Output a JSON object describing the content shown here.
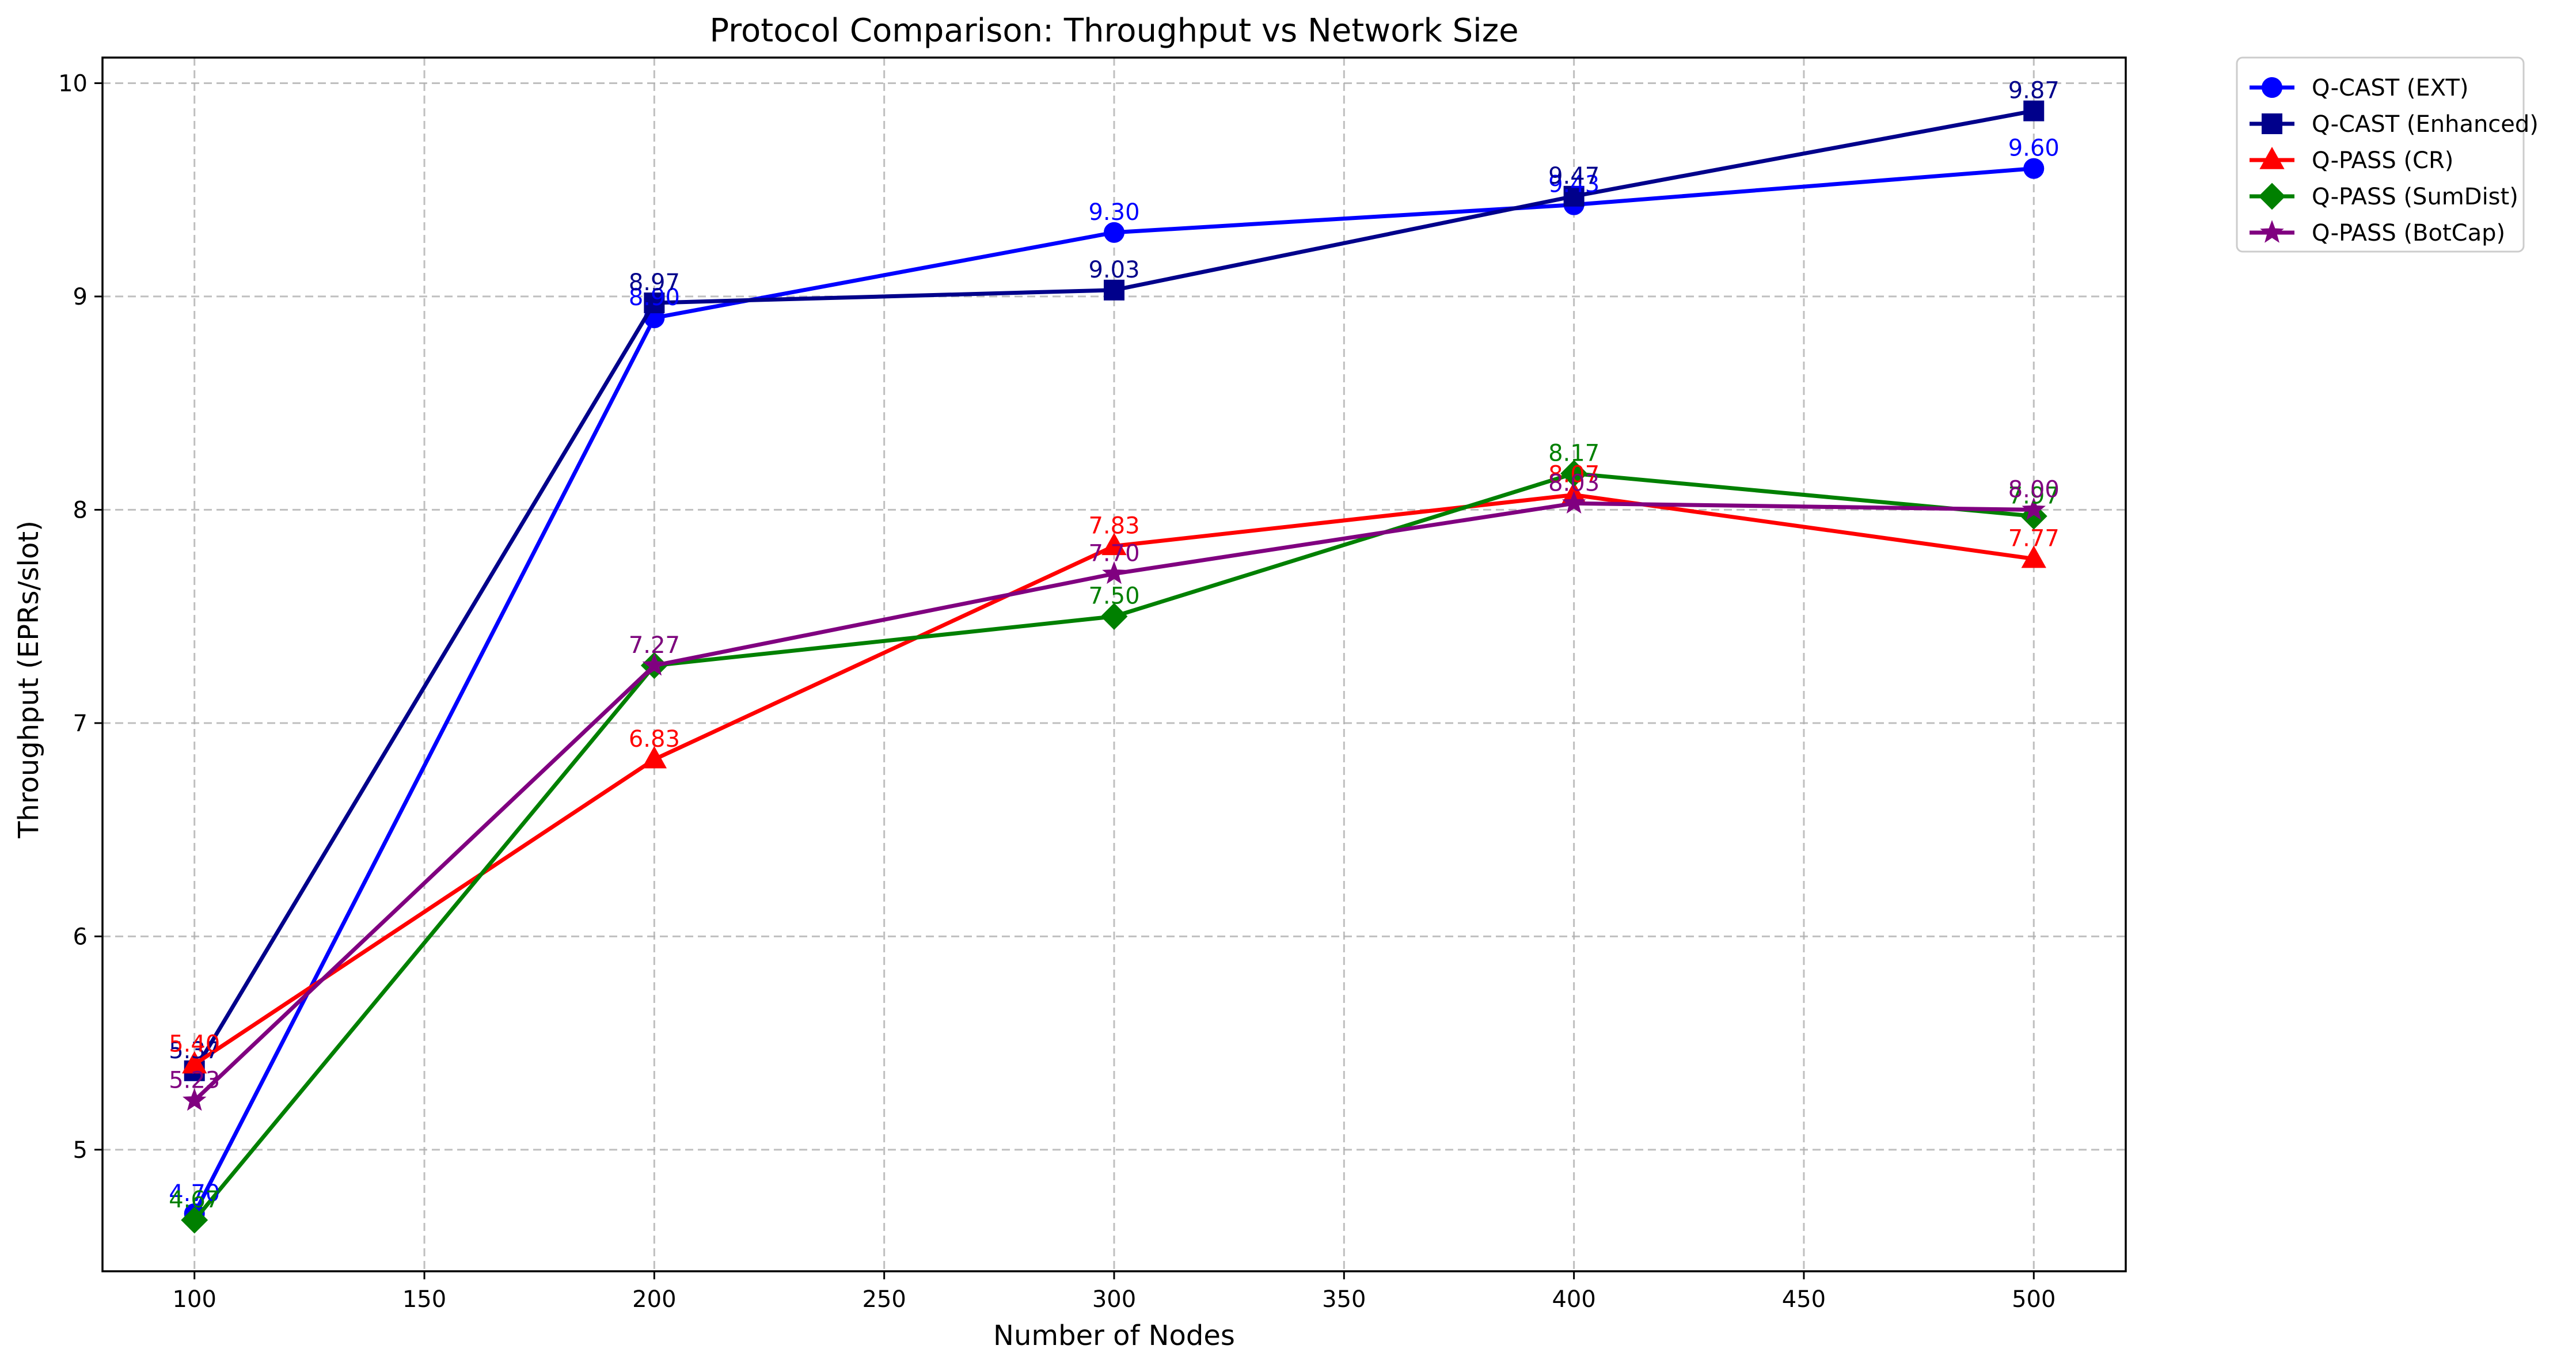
{
  "chart_data": {
    "type": "line",
    "title": "Protocol Comparison: Throughput vs Network Size",
    "xlabel": "Number of Nodes",
    "ylabel": "Throughput (EPRs/slot)",
    "x": [
      100,
      200,
      300,
      400,
      500
    ],
    "xlim": [
      80,
      520
    ],
    "ylim": [
      4.43,
      10.12
    ],
    "xticks": [
      100,
      150,
      200,
      250,
      300,
      350,
      400,
      450,
      500
    ],
    "yticks": [
      5,
      6,
      7,
      8,
      9,
      10
    ],
    "grid": true,
    "legend_position": "outside-top-right",
    "series": [
      {
        "name": "Q-CAST (EXT)",
        "color": "#0000ff",
        "marker": "circle",
        "values": [
          4.7,
          8.9,
          9.3,
          9.43,
          9.6
        ],
        "labels": [
          "4.70",
          "8.90",
          "9.30",
          "9.43",
          "9.60"
        ]
      },
      {
        "name": "Q-CAST (Enhanced)",
        "color": "#00008b",
        "marker": "square",
        "values": [
          5.37,
          8.97,
          9.03,
          9.47,
          9.87
        ],
        "labels": [
          "5.37",
          "8.97",
          "9.03",
          "9.47",
          "9.87"
        ]
      },
      {
        "name": "Q-PASS (CR)",
        "color": "#ff0000",
        "marker": "triangle",
        "values": [
          5.4,
          6.83,
          7.83,
          8.07,
          7.77
        ],
        "labels": [
          "5.40",
          "6.83",
          "7.83",
          "8.07",
          "7.77"
        ]
      },
      {
        "name": "Q-PASS (SumDist)",
        "color": "#008000",
        "marker": "diamond",
        "values": [
          4.67,
          7.27,
          7.5,
          8.17,
          7.97
        ],
        "labels": [
          "4.67",
          "7.27",
          "7.50",
          "8.17",
          "7.97"
        ]
      },
      {
        "name": "Q-PASS (BotCap)",
        "color": "#800080",
        "marker": "star",
        "values": [
          5.23,
          7.27,
          7.7,
          8.03,
          8.0
        ],
        "labels": [
          "5.23",
          "7.27",
          "7.70",
          "8.03",
          "8.00"
        ]
      }
    ]
  }
}
